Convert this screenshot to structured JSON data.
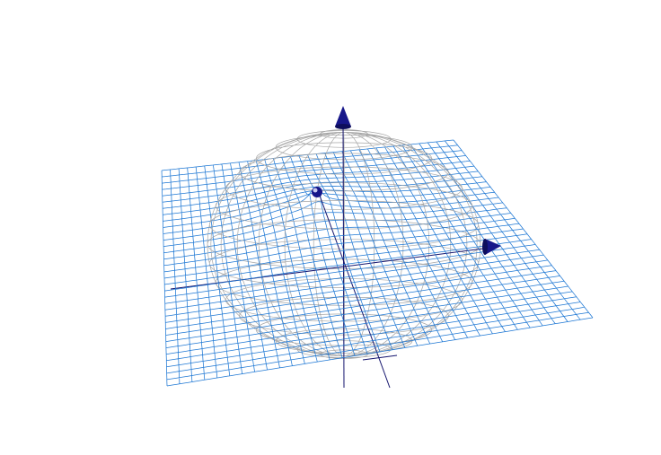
{
  "scene": {
    "background": "#ffffff",
    "surface_color": "#1f78d4",
    "sphere_color": "#a6a6a6",
    "axis_color": "#15156e",
    "arrow_color": "#17178a",
    "icons": [
      "z-axis-arrow-icon",
      "x-axis-arrow-icon",
      "point-handle-icon"
    ]
  }
}
